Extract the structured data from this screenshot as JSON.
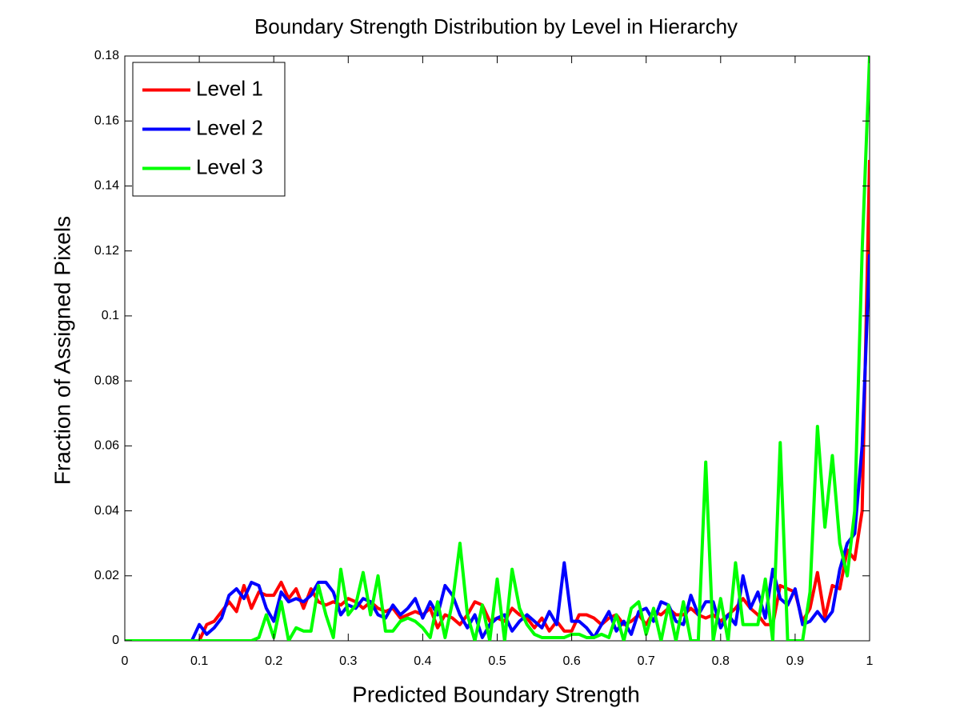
{
  "chart_data": {
    "type": "line",
    "title": "Boundary Strength Distribution by Level in Hierarchy",
    "x_label": "Predicted Boundary Strength",
    "y_label": "Fraction of Assigned Pixels",
    "x": [
      0,
      0.01,
      0.02,
      0.03,
      0.04,
      0.05,
      0.06,
      0.07,
      0.08,
      0.09,
      0.1,
      0.11,
      0.12,
      0.13,
      0.14,
      0.15,
      0.16,
      0.17,
      0.18,
      0.19,
      0.2,
      0.21,
      0.22,
      0.23,
      0.24,
      0.25,
      0.26,
      0.27,
      0.28,
      0.29,
      0.3,
      0.31,
      0.32,
      0.33,
      0.34,
      0.35,
      0.36,
      0.37,
      0.38,
      0.39,
      0.4,
      0.41,
      0.42,
      0.43,
      0.44,
      0.45,
      0.46,
      0.47,
      0.48,
      0.49,
      0.5,
      0.51,
      0.52,
      0.53,
      0.54,
      0.55,
      0.56,
      0.57,
      0.58,
      0.59,
      0.6,
      0.61,
      0.62,
      0.63,
      0.64,
      0.65,
      0.66,
      0.67,
      0.68,
      0.69,
      0.7,
      0.71,
      0.72,
      0.73,
      0.74,
      0.75,
      0.76,
      0.77,
      0.78,
      0.79,
      0.8,
      0.81,
      0.82,
      0.83,
      0.84,
      0.85,
      0.86,
      0.87,
      0.88,
      0.89,
      0.9,
      0.91,
      0.92,
      0.93,
      0.94,
      0.95,
      0.96,
      0.97,
      0.98,
      0.99,
      1
    ],
    "series": [
      {
        "name": "Level 1",
        "color": "#ff0000",
        "values": [
          0,
          0,
          0,
          0,
          0,
          0,
          0,
          0,
          0,
          0,
          0,
          0.005,
          0.006,
          0.009,
          0.012,
          0.009,
          0.017,
          0.01,
          0.015,
          0.014,
          0.014,
          0.018,
          0.013,
          0.016,
          0.01,
          0.016,
          0.012,
          0.011,
          0.012,
          0.011,
          0.013,
          0.012,
          0.01,
          0.012,
          0.01,
          0.009,
          0.01,
          0.007,
          0.008,
          0.009,
          0.008,
          0.01,
          0.004,
          0.008,
          0.007,
          0.005,
          0.008,
          0.012,
          0.011,
          0.006,
          0.007,
          0.006,
          0.01,
          0.008,
          0.007,
          0.004,
          0.007,
          0.003,
          0.006,
          0.003,
          0.003,
          0.008,
          0.008,
          0.007,
          0.005,
          0.007,
          0.008,
          0.005,
          0.006,
          0.008,
          0.005,
          0.009,
          0.008,
          0.01,
          0.008,
          0.008,
          0.01,
          0.008,
          0.007,
          0.008,
          0.006,
          0.008,
          0.01,
          0.013,
          0.01,
          0.008,
          0.005,
          0.005,
          0.017,
          0.016,
          0.015,
          0.006,
          0.01,
          0.021,
          0.007,
          0.017,
          0.016,
          0.028,
          0.025,
          0.04,
          0.148
        ]
      },
      {
        "name": "Level 2",
        "color": "#0000ff",
        "values": [
          0,
          0,
          0,
          0,
          0,
          0,
          0,
          0,
          0,
          0,
          0.005,
          0.002,
          0.004,
          0.007,
          0.014,
          0.016,
          0.013,
          0.018,
          0.017,
          0.01,
          0.006,
          0.015,
          0.012,
          0.013,
          0.012,
          0.014,
          0.018,
          0.018,
          0.015,
          0.008,
          0.011,
          0.01,
          0.013,
          0.012,
          0.008,
          0.007,
          0.011,
          0.008,
          0.01,
          0.013,
          0.007,
          0.012,
          0.008,
          0.017,
          0.014,
          0.008,
          0.004,
          0.008,
          0.001,
          0.005,
          0.007,
          0.008,
          0.003,
          0.006,
          0.008,
          0.006,
          0.004,
          0.009,
          0.005,
          0.024,
          0.006,
          0.006,
          0.004,
          0.001,
          0.005,
          0.009,
          0.003,
          0.006,
          0.002,
          0.009,
          0.01,
          0.006,
          0.012,
          0.011,
          0.006,
          0.005,
          0.014,
          0.008,
          0.012,
          0.012,
          0.004,
          0.008,
          0.005,
          0.02,
          0.01,
          0.015,
          0.007,
          0.022,
          0.013,
          0.011,
          0.016,
          0.005,
          0.006,
          0.009,
          0.006,
          0.009,
          0.022,
          0.03,
          0.033,
          0.06,
          0.119
        ]
      },
      {
        "name": "Level 3",
        "color": "#00ff00",
        "values": [
          0,
          0,
          0,
          0,
          0,
          0,
          0,
          0,
          0,
          0,
          0,
          0,
          0,
          0,
          0,
          0,
          0,
          0,
          0.001,
          0.008,
          0.001,
          0.012,
          0,
          0.004,
          0.003,
          0.003,
          0.017,
          0.008,
          0.001,
          0.022,
          0.008,
          0.011,
          0.021,
          0.008,
          0.02,
          0.003,
          0.003,
          0.006,
          0.007,
          0.006,
          0.004,
          0.001,
          0.012,
          0.001,
          0.012,
          0.03,
          0.008,
          0,
          0.011,
          0,
          0.019,
          0,
          0.022,
          0.01,
          0.005,
          0.002,
          0.001,
          0.001,
          0.001,
          0.001,
          0.002,
          0.002,
          0.001,
          0.001,
          0.002,
          0.001,
          0.008,
          0,
          0.01,
          0.012,
          0.002,
          0.01,
          0,
          0.011,
          0,
          0.012,
          0,
          0,
          0.055,
          0,
          0.013,
          0,
          0.024,
          0.005,
          0.005,
          0.005,
          0.019,
          0,
          0.061,
          0,
          0,
          0,
          0.015,
          0.066,
          0.035,
          0.057,
          0.03,
          0.02,
          0.04,
          0.12,
          0.18
        ]
      }
    ],
    "xlim": [
      0,
      1
    ],
    "ylim": [
      0,
      0.18
    ],
    "xticks": [
      0,
      0.1,
      0.2,
      0.3,
      0.4,
      0.5,
      0.6,
      0.7,
      0.8,
      0.9,
      1
    ],
    "yticks": [
      0,
      0.02,
      0.04,
      0.06,
      0.08,
      0.1,
      0.12,
      0.14,
      0.16,
      0.18
    ],
    "legend": "upper left",
    "grid": false
  }
}
